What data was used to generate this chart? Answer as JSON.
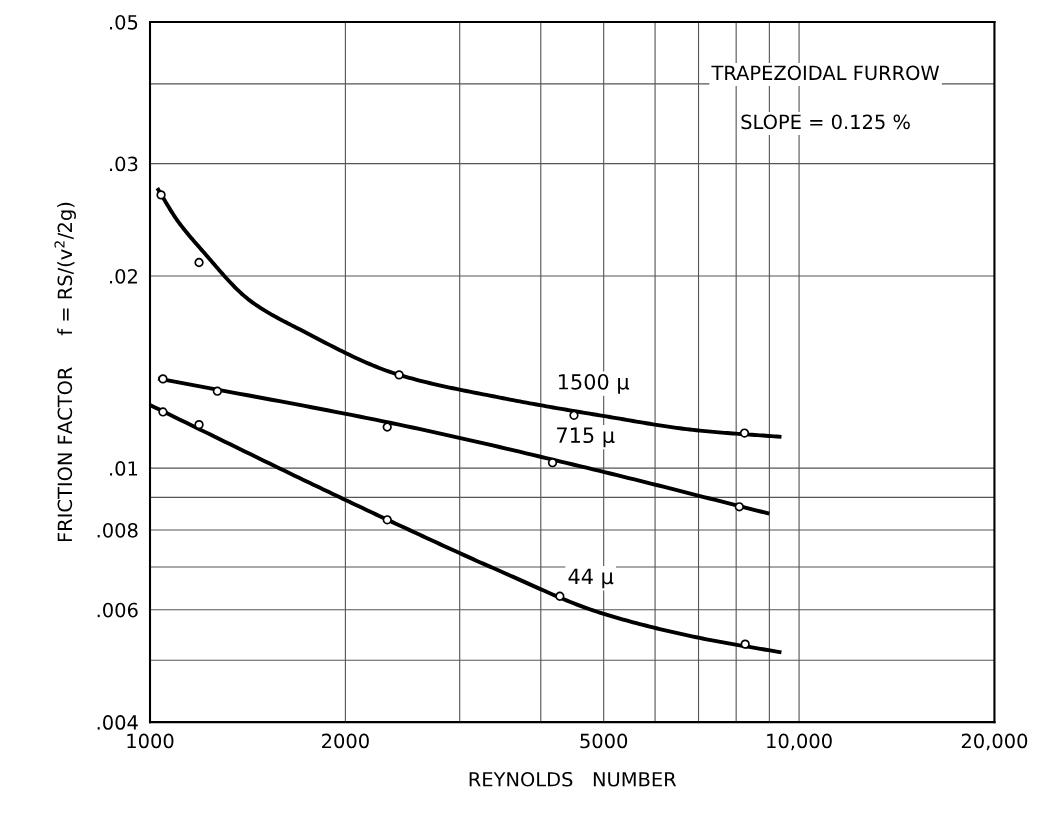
{
  "chart_data": {
    "type": "line",
    "title": "TRAPEZOIDAL FURROW",
    "subtitle": "SLOPE = 0.125 %",
    "xlabel": "REYNOLDS   NUMBER",
    "ylabel": "FRICTION FACTOR     f = RS/(v$^{2}$/2g)",
    "log": "xy",
    "grid": true,
    "xlim": [
      1000,
      20000
    ],
    "ylim": [
      0.004,
      0.05
    ],
    "xticks": [
      1000,
      2000,
      {
        "value": 3000,
        "label": null
      },
      {
        "value": 4000,
        "label": null
      },
      5000,
      {
        "value": 6000,
        "label": null
      },
      {
        "value": 7000,
        "label": null
      },
      {
        "value": 8000,
        "label": null
      },
      {
        "value": 9000,
        "label": null
      },
      {
        "value": 10000,
        "label": "10,000"
      },
      {
        "value": 20000,
        "label": "20,000"
      }
    ],
    "yticks": [
      {
        "value": 0.004,
        "label": ".004"
      },
      {
        "value": 0.005,
        "label": null
      },
      {
        "value": 0.006,
        "label": ".006"
      },
      {
        "value": 0.007,
        "label": null
      },
      {
        "value": 0.008,
        "label": ".008"
      },
      {
        "value": 0.009,
        "label": null
      },
      {
        "value": 0.01,
        "label": ".01"
      },
      {
        "value": 0.02,
        "label": ".02"
      },
      {
        "value": 0.03,
        "label": ".03"
      },
      {
        "value": 0.04,
        "label": null
      },
      {
        "value": 0.05,
        "label": ".05"
      }
    ],
    "series": [
      {
        "name": "1500 μ",
        "color": "#000000",
        "x": [
          1030,
          1100,
          1200,
          1426,
          1700,
          2420,
          3460,
          4930,
          7030,
          9330
        ],
        "values": [
          0.0273,
          0.0245,
          0.022,
          0.0183,
          0.0165,
          0.014,
          0.0129,
          0.0121,
          0.01145,
          0.0112
        ]
      },
      {
        "name": "715 μ",
        "color": "#000000",
        "x": [
          1036,
          2420,
          4930,
          8940
        ],
        "values": [
          0.0138,
          0.0117,
          0.0099,
          0.0085
        ]
      },
      {
        "name": "44 μ",
        "color": "#000000",
        "x": [
          1000,
          1700,
          2420,
          3460,
          4930,
          7030,
          9330
        ],
        "values": [
          0.01256,
          0.00965,
          0.00814,
          0.0069,
          0.00594,
          0.00542,
          0.00515
        ]
      },
      {
        "type": "scatter",
        "color": "#000000",
        "marker": "circle",
        "x": [
          1040,
          1190,
          2420,
          4500,
          8240
        ],
        "values": [
          0.0268,
          0.021,
          0.014,
          0.0121,
          0.01135
        ]
      },
      {
        "type": "scatter",
        "color": "#000000",
        "marker": "circle",
        "x": [
          1047,
          1270,
          2320,
          4170,
          8090
        ],
        "values": [
          0.0138,
          0.0132,
          0.0116,
          0.0102,
          0.0087
        ]
      },
      {
        "type": "scatter",
        "color": "#000000",
        "marker": "circle",
        "x": [
          1047,
          1190,
          2320,
          4280,
          8260
        ],
        "values": [
          0.01225,
          0.0117,
          0.0083,
          0.0063,
          0.0053
        ]
      }
    ]
  }
}
